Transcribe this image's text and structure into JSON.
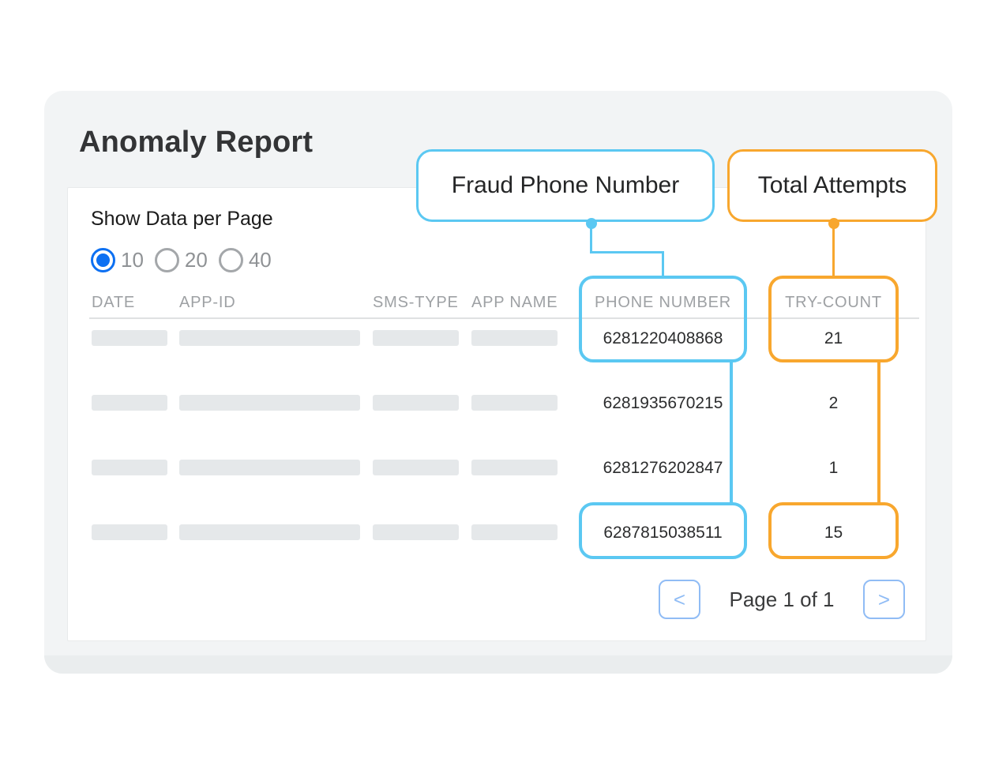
{
  "report": {
    "title": "Anomaly Report"
  },
  "callouts": {
    "fraud_phone_number": "Fraud Phone Number",
    "total_attempts": "Total Attempts"
  },
  "per_page": {
    "label": "Show Data per Page",
    "options": [
      {
        "label": "10",
        "selected": true
      },
      {
        "label": "20",
        "selected": false
      },
      {
        "label": "40",
        "selected": false
      }
    ]
  },
  "table": {
    "columns": [
      "DATE",
      "APP-ID",
      "SMS-TYPE",
      "APP NAME",
      "PHONE NUMBER",
      "TRY-COUNT"
    ],
    "rows": [
      {
        "phone_number": "6281220408868",
        "try_count": "21",
        "highlighted": true
      },
      {
        "phone_number": "6281935670215",
        "try_count": "2",
        "highlighted": false
      },
      {
        "phone_number": "6281276202847",
        "try_count": "1",
        "highlighted": false
      },
      {
        "phone_number": "6287815038511",
        "try_count": "15",
        "highlighted": true
      }
    ]
  },
  "pagination": {
    "prev_label": "<",
    "next_label": ">",
    "status": "Page 1 of 1"
  },
  "colors": {
    "accent_blue": "#5BC8F2",
    "accent_orange": "#F8A72E",
    "radio_blue": "#0D70F2",
    "pagination_blue": "#90BCF5",
    "window_gray": "#F2F4F5"
  }
}
